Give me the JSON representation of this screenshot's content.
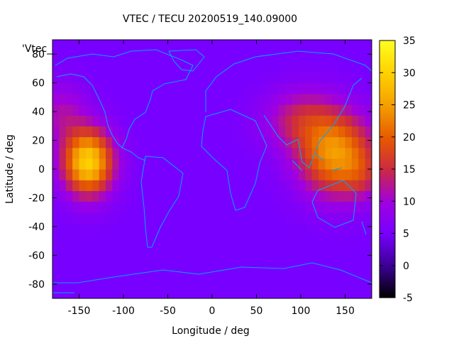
{
  "chart_data": {
    "type": "heatmap",
    "title": "VTEC / TECU 20200519_140.09000",
    "xlabel": "Longitude / deg",
    "ylabel": "Latitude / deg",
    "key_label": "'Vtec_",
    "xlim": [
      -180,
      180
    ],
    "ylim": [
      -90,
      90
    ],
    "x_ticks": [
      -150,
      -100,
      -50,
      0,
      50,
      100,
      150
    ],
    "y_ticks": [
      -80,
      -60,
      -40,
      -20,
      0,
      20,
      40,
      60,
      80
    ],
    "colorbar": {
      "range": [
        -5,
        35
      ],
      "ticks": [
        -5,
        0,
        5,
        10,
        15,
        20,
        25,
        30,
        35
      ],
      "palette": [
        "#000000",
        "#3a0090",
        "#7800ff",
        "#a000e0",
        "#cc2a40",
        "#e65a00",
        "#f5a000",
        "#ffd000",
        "#ffff20"
      ]
    },
    "background_level_tecu": 5,
    "anomalies": [
      {
        "lon": -140,
        "lat": 5,
        "lon_sigma": 20,
        "lat_sigma": 16,
        "value": 25
      },
      {
        "lon": 140,
        "lat": 10,
        "lon_sigma": 30,
        "lat_sigma": 20,
        "value": 19
      },
      {
        "lon": 170,
        "lat": -5,
        "lon_sigma": 16,
        "lat_sigma": 12,
        "value": 4
      },
      {
        "lon": 100,
        "lat": 35,
        "lon_sigma": 30,
        "lat_sigma": 15,
        "value": 8
      },
      {
        "lon": -170,
        "lat": 40,
        "lon_sigma": 20,
        "lat_sigma": 15,
        "value": 6
      }
    ],
    "coastline_color": "#00a6ff",
    "grid": false,
    "colorbar_placement": "right"
  }
}
